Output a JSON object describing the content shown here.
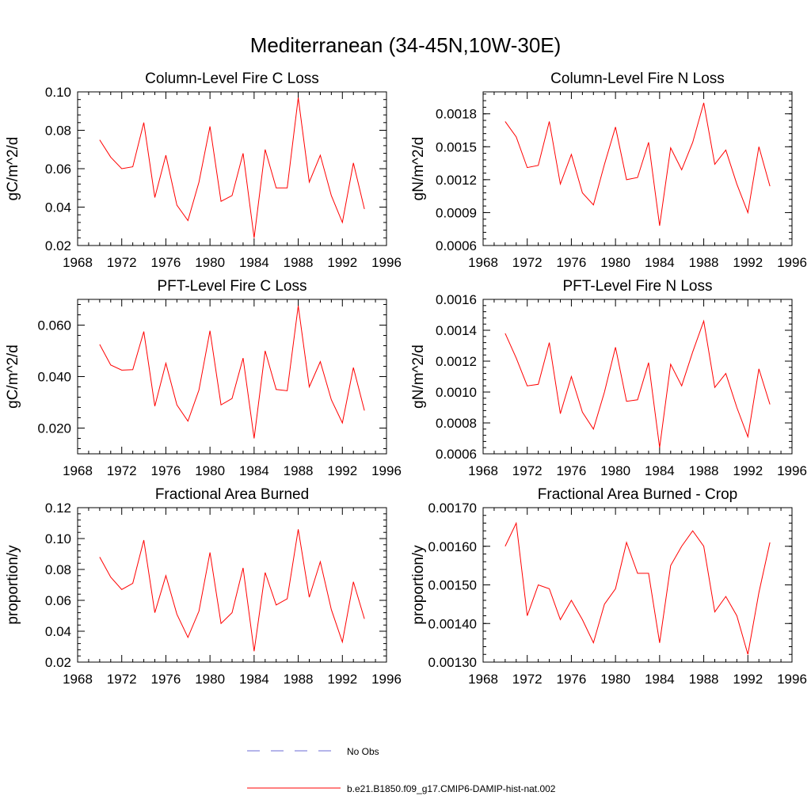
{
  "figure": {
    "title": "Mediterranean (34-45N,10W-30E)"
  },
  "legend": {
    "entries": [
      {
        "label": "No Obs",
        "color": "#6b6bd6",
        "dashed": true
      },
      {
        "label": "b.e21.B1850.f09_g17.CMIP6-DAMIP-hist-nat.002",
        "color": "#ff0000",
        "dashed": false
      }
    ]
  },
  "chart_data": [
    {
      "type": "line",
      "title": "Column-Level Fire C Loss",
      "ylabel": "gC/m^2/d",
      "xlim": [
        1968,
        1996
      ],
      "xticks": [
        "1968",
        "1972",
        "1976",
        "1980",
        "1984",
        "1988",
        "1992",
        "1996"
      ],
      "ylim": [
        0.02,
        0.1
      ],
      "yticks": [
        "0.02",
        "0.04",
        "0.06",
        "0.08",
        "0.10"
      ],
      "x": [
        1970,
        1971,
        1972,
        1973,
        1974,
        1975,
        1976,
        1977,
        1978,
        1979,
        1980,
        1981,
        1982,
        1983,
        1984,
        1985,
        1986,
        1987,
        1988,
        1989,
        1990,
        1991,
        1992,
        1993,
        1994
      ],
      "series": [
        {
          "color": "#ff0000",
          "values": [
            0.075,
            0.066,
            0.06,
            0.061,
            0.084,
            0.045,
            0.067,
            0.041,
            0.033,
            0.053,
            0.082,
            0.043,
            0.046,
            0.068,
            0.024,
            0.07,
            0.05,
            0.05,
            0.097,
            0.053,
            0.067,
            0.046,
            0.032,
            0.063,
            0.039
          ]
        }
      ]
    },
    {
      "type": "line",
      "title": "Column-Level Fire N Loss",
      "ylabel": "gN/m^2/d",
      "xlim": [
        1968,
        1996
      ],
      "xticks": [
        "1968",
        "1972",
        "1976",
        "1980",
        "1984",
        "1988",
        "1992",
        "1996"
      ],
      "ylim": [
        0.0006,
        0.002
      ],
      "yticks": [
        "0.0006",
        "0.0009",
        "0.0012",
        "0.0015",
        "0.0018"
      ],
      "x": [
        1970,
        1971,
        1972,
        1973,
        1974,
        1975,
        1976,
        1977,
        1978,
        1979,
        1980,
        1981,
        1982,
        1983,
        1984,
        1985,
        1986,
        1987,
        1988,
        1989,
        1990,
        1991,
        1992,
        1993,
        1994
      ],
      "series": [
        {
          "color": "#ff0000",
          "values": [
            0.00173,
            0.00159,
            0.00131,
            0.00133,
            0.00173,
            0.00116,
            0.00143,
            0.00108,
            0.00097,
            0.00134,
            0.00168,
            0.0012,
            0.00122,
            0.00154,
            0.00078,
            0.00149,
            0.00129,
            0.00154,
            0.0019,
            0.00134,
            0.00147,
            0.00116,
            0.0009,
            0.0015,
            0.00114
          ]
        }
      ]
    },
    {
      "type": "line",
      "title": "PFT-Level Fire C Loss",
      "ylabel": "gC/m^2/d",
      "xlim": [
        1968,
        1996
      ],
      "xticks": [
        "1968",
        "1972",
        "1976",
        "1980",
        "1984",
        "1988",
        "1992",
        "1996"
      ],
      "ylim": [
        0.01,
        0.07
      ],
      "yticks": [
        "0.020",
        "0.040",
        "0.060"
      ],
      "x": [
        1970,
        1971,
        1972,
        1973,
        1974,
        1975,
        1976,
        1977,
        1978,
        1979,
        1980,
        1981,
        1982,
        1983,
        1984,
        1985,
        1986,
        1987,
        1988,
        1989,
        1990,
        1991,
        1992,
        1993,
        1994
      ],
      "series": [
        {
          "color": "#ff0000",
          "values": [
            0.0525,
            0.0445,
            0.0425,
            0.0427,
            0.0575,
            0.0285,
            0.0452,
            0.029,
            0.0227,
            0.0348,
            0.0578,
            0.029,
            0.0315,
            0.0472,
            0.016,
            0.05,
            0.035,
            0.0345,
            0.0675,
            0.036,
            0.0458,
            0.031,
            0.022,
            0.0435,
            0.0268
          ]
        }
      ]
    },
    {
      "type": "line",
      "title": "PFT-Level Fire N Loss",
      "ylabel": "gN/m^2/d",
      "xlim": [
        1968,
        1996
      ],
      "xticks": [
        "1968",
        "1972",
        "1976",
        "1980",
        "1984",
        "1988",
        "1992",
        "1996"
      ],
      "ylim": [
        0.0006,
        0.0016
      ],
      "yticks": [
        "0.0006",
        "0.0008",
        "0.0010",
        "0.0012",
        "0.0014",
        "0.0016"
      ],
      "x": [
        1970,
        1971,
        1972,
        1973,
        1974,
        1975,
        1976,
        1977,
        1978,
        1979,
        1980,
        1981,
        1982,
        1983,
        1984,
        1985,
        1986,
        1987,
        1988,
        1989,
        1990,
        1991,
        1992,
        1993,
        1994
      ],
      "series": [
        {
          "color": "#ff0000",
          "values": [
            0.00138,
            0.00122,
            0.00104,
            0.00105,
            0.00132,
            0.00086,
            0.0011,
            0.00087,
            0.00076,
            0.001,
            0.00129,
            0.00094,
            0.00095,
            0.00119,
            0.00064,
            0.00118,
            0.00104,
            0.00126,
            0.00146,
            0.00103,
            0.00112,
            0.0009,
            0.00071,
            0.00115,
            0.00092
          ]
        }
      ]
    },
    {
      "type": "line",
      "title": "Fractional Area Burned",
      "ylabel": "proportion/y",
      "xlim": [
        1968,
        1996
      ],
      "xticks": [
        "1968",
        "1972",
        "1976",
        "1980",
        "1984",
        "1988",
        "1992",
        "1996"
      ],
      "ylim": [
        0.02,
        0.12
      ],
      "yticks": [
        "0.02",
        "0.04",
        "0.06",
        "0.08",
        "0.10",
        "0.12"
      ],
      "x": [
        1970,
        1971,
        1972,
        1973,
        1974,
        1975,
        1976,
        1977,
        1978,
        1979,
        1980,
        1981,
        1982,
        1983,
        1984,
        1985,
        1986,
        1987,
        1988,
        1989,
        1990,
        1991,
        1992,
        1993,
        1994
      ],
      "series": [
        {
          "color": "#ff0000",
          "values": [
            0.088,
            0.075,
            0.067,
            0.071,
            0.099,
            0.052,
            0.076,
            0.051,
            0.036,
            0.053,
            0.091,
            0.045,
            0.052,
            0.081,
            0.027,
            0.078,
            0.057,
            0.061,
            0.106,
            0.062,
            0.085,
            0.054,
            0.033,
            0.072,
            0.048
          ]
        }
      ]
    },
    {
      "type": "line",
      "title": "Fractional Area Burned - Crop",
      "ylabel": "proportion/y",
      "xlim": [
        1968,
        1996
      ],
      "xticks": [
        "1968",
        "1972",
        "1976",
        "1980",
        "1984",
        "1988",
        "1992",
        "1996"
      ],
      "ylim": [
        0.0013,
        0.0017
      ],
      "yticks": [
        "0.00130",
        "0.00140",
        "0.00150",
        "0.00160",
        "0.00170"
      ],
      "x": [
        1970,
        1971,
        1972,
        1973,
        1974,
        1975,
        1976,
        1977,
        1978,
        1979,
        1980,
        1981,
        1982,
        1983,
        1984,
        1985,
        1986,
        1987,
        1988,
        1989,
        1990,
        1991,
        1992,
        1993,
        1994
      ],
      "series": [
        {
          "color": "#ff0000",
          "values": [
            0.0016,
            0.00166,
            0.00142,
            0.0015,
            0.00149,
            0.00141,
            0.00146,
            0.00141,
            0.00135,
            0.00145,
            0.00149,
            0.00161,
            0.00153,
            0.00153,
            0.00135,
            0.00155,
            0.0016,
            0.00164,
            0.0016,
            0.00143,
            0.00147,
            0.00142,
            0.00132,
            0.00148,
            0.00161
          ]
        }
      ]
    }
  ]
}
